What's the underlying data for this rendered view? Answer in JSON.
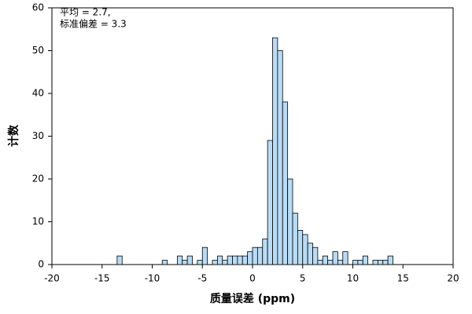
{
  "chart_data": {
    "type": "histogram",
    "xlabel": "质量误差 (ppm)",
    "ylabel": "计数",
    "annotations": [
      "平均 = 2.7,",
      "标准偏差 = 3.3"
    ],
    "color": "#b8dcf5",
    "edgecolor": "#000000",
    "bins": [
      -13.5,
      -13,
      -12.5,
      -12,
      -11.5,
      -11,
      -10.5,
      -10,
      -9.5,
      -9,
      -8.5,
      -8,
      -7.5,
      -7,
      -6.5,
      -6,
      -5.5,
      -5,
      -4.5,
      -4,
      -3.5,
      -3,
      -2.5,
      -2,
      -1.5,
      -1,
      -0.5,
      0,
      0.5,
      1,
      1.5,
      2,
      2.5,
      3,
      3.5,
      4,
      4.5,
      5,
      5.5,
      6,
      6.5,
      7,
      7.5,
      8,
      8.5,
      9,
      9.5,
      10,
      10.5,
      11,
      11.5,
      12,
      12.5,
      13,
      13.5,
      14
    ],
    "values": [
      2,
      0,
      0,
      0,
      0,
      0,
      0,
      0,
      0,
      1,
      0,
      0,
      2,
      1,
      2,
      0,
      1,
      4,
      0,
      1,
      2,
      1,
      2,
      2,
      2,
      2,
      3,
      4,
      4,
      6,
      29,
      53,
      50,
      38,
      20,
      12,
      8,
      7,
      5,
      4,
      1,
      2,
      1,
      3,
      1,
      3,
      0,
      1,
      1,
      2,
      0,
      1,
      1,
      1,
      2
    ],
    "xlim": [
      -20,
      20
    ],
    "xticks": [
      -20,
      -15,
      -10,
      -5,
      0,
      5,
      10,
      15,
      20
    ],
    "ylim": [
      0,
      60
    ],
    "yticks": [
      0,
      10,
      20,
      30,
      40,
      50,
      60
    ]
  }
}
